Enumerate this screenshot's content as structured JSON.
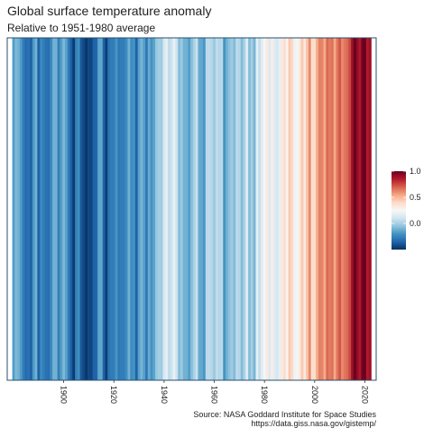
{
  "chart_data": {
    "type": "heatmap",
    "title": "Global surface temperature anomaly",
    "subtitle": "Relative to 1951-1980 average",
    "source_line1": "Source: NASA Goddard Institute for Space Studies",
    "source_line2": "https://data.giss.nasa.gov/gistemp/",
    "x": [
      1880,
      1881,
      1882,
      1883,
      1884,
      1885,
      1886,
      1887,
      1888,
      1889,
      1890,
      1891,
      1892,
      1893,
      1894,
      1895,
      1896,
      1897,
      1898,
      1899,
      1900,
      1901,
      1902,
      1903,
      1904,
      1905,
      1906,
      1907,
      1908,
      1909,
      1910,
      1911,
      1912,
      1913,
      1914,
      1915,
      1916,
      1917,
      1918,
      1919,
      1920,
      1921,
      1922,
      1923,
      1924,
      1925,
      1926,
      1927,
      1928,
      1929,
      1930,
      1931,
      1932,
      1933,
      1934,
      1935,
      1936,
      1937,
      1938,
      1939,
      1940,
      1941,
      1942,
      1943,
      1944,
      1945,
      1946,
      1947,
      1948,
      1949,
      1950,
      1951,
      1952,
      1953,
      1954,
      1955,
      1956,
      1957,
      1958,
      1959,
      1960,
      1961,
      1962,
      1963,
      1964,
      1965,
      1966,
      1967,
      1968,
      1969,
      1970,
      1971,
      1972,
      1973,
      1974,
      1975,
      1976,
      1977,
      1978,
      1979,
      1980,
      1981,
      1982,
      1983,
      1984,
      1985,
      1986,
      1987,
      1988,
      1989,
      1990,
      1991,
      1992,
      1993,
      1994,
      1995,
      1996,
      1997,
      1998,
      1999,
      2000,
      2001,
      2002,
      2003,
      2004,
      2005,
      2006,
      2007,
      2008,
      2009,
      2010,
      2011,
      2012,
      2013,
      2014,
      2015,
      2016,
      2017,
      2018,
      2019,
      2020,
      2021,
      2022
    ],
    "values": [
      -0.17,
      -0.09,
      -0.11,
      -0.18,
      -0.28,
      -0.33,
      -0.31,
      -0.36,
      -0.18,
      -0.11,
      -0.36,
      -0.23,
      -0.27,
      -0.31,
      -0.32,
      -0.23,
      -0.11,
      -0.11,
      -0.27,
      -0.17,
      -0.09,
      -0.15,
      -0.28,
      -0.37,
      -0.47,
      -0.26,
      -0.22,
      -0.39,
      -0.43,
      -0.48,
      -0.43,
      -0.44,
      -0.36,
      -0.35,
      -0.15,
      -0.14,
      -0.36,
      -0.46,
      -0.3,
      -0.28,
      -0.27,
      -0.19,
      -0.29,
      -0.27,
      -0.27,
      -0.22,
      -0.11,
      -0.22,
      -0.2,
      -0.36,
      -0.16,
      -0.1,
      -0.16,
      -0.29,
      -0.13,
      -0.2,
      -0.15,
      -0.03,
      -0.01,
      -0.02,
      0.13,
      0.18,
      0.06,
      0.09,
      0.2,
      0.09,
      -0.07,
      -0.03,
      -0.11,
      -0.11,
      -0.17,
      -0.07,
      0.01,
      0.08,
      -0.13,
      -0.14,
      -0.19,
      0.05,
      0.06,
      0.03,
      -0.03,
      0.06,
      0.03,
      0.05,
      -0.2,
      -0.11,
      -0.06,
      -0.02,
      -0.08,
      0.05,
      0.03,
      -0.08,
      0.01,
      0.16,
      -0.07,
      -0.01,
      -0.1,
      0.18,
      0.07,
      0.16,
      0.26,
      0.32,
      0.14,
      0.31,
      0.16,
      0.12,
      0.18,
      0.32,
      0.39,
      0.27,
      0.45,
      0.4,
      0.22,
      0.23,
      0.32,
      0.45,
      0.33,
      0.46,
      0.61,
      0.38,
      0.39,
      0.54,
      0.63,
      0.62,
      0.53,
      0.68,
      0.64,
      0.66,
      0.54,
      0.65,
      0.72,
      0.61,
      0.65,
      0.68,
      0.75,
      0.9,
      1.01,
      0.92,
      0.85,
      0.98,
      1.02,
      0.85,
      0.89
    ],
    "xlim": [
      1877.5,
      2024.5
    ],
    "x_ticks": [
      1900,
      1920,
      1940,
      1960,
      1980,
      2000,
      2020
    ],
    "x_tick_labels": [
      "1900",
      "1920",
      "1940",
      "1960",
      "1980",
      "2000",
      "2020"
    ],
    "color_scale": {
      "type": "diverging",
      "limits": [
        -0.5,
        1.0
      ],
      "midpoint": 0.0,
      "breaks": [
        0.0,
        0.5,
        1.0
      ],
      "break_labels": [
        "0.0",
        "0.5",
        "1.0"
      ],
      "colors": [
        "#053061",
        "#2166ac",
        "#4393c3",
        "#92c5de",
        "#d1e5f0",
        "#f7f7f7",
        "#fddbc7",
        "#f4a582",
        "#d6604d",
        "#b2182b",
        "#67001f"
      ]
    },
    "legend_position": "right",
    "grid": false
  }
}
